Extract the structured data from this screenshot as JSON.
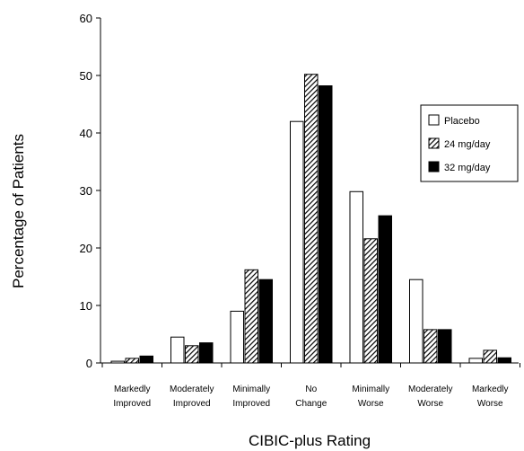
{
  "chart_data": {
    "type": "bar",
    "title": "",
    "xlabel": "CIBIC-plus Rating",
    "ylabel": "Percentage  of Patients",
    "ylim": [
      0,
      60
    ],
    "yticks": [
      0,
      10,
      20,
      30,
      40,
      50,
      60
    ],
    "grid": false,
    "legend_position": "right",
    "categories": [
      [
        "Markedly",
        "Improved"
      ],
      [
        "Moderately",
        "Improved"
      ],
      [
        "Minimally",
        "Improved"
      ],
      [
        "No",
        "Change"
      ],
      [
        "Minimally",
        "Worse"
      ],
      [
        "Moderately",
        "Worse"
      ],
      [
        "Markedly",
        "Worse"
      ]
    ],
    "series": [
      {
        "name": "Placebo",
        "fill": "white",
        "values": [
          0.3,
          4.5,
          9.0,
          42.0,
          29.8,
          14.5,
          0.8
        ]
      },
      {
        "name": "24 mg/day",
        "fill": "hatched",
        "values": [
          0.8,
          3.0,
          16.2,
          50.2,
          21.6,
          5.8,
          2.2
        ]
      },
      {
        "name": "32 mg/day",
        "fill": "solid",
        "values": [
          1.2,
          3.5,
          14.5,
          48.2,
          25.6,
          5.8,
          0.9
        ]
      }
    ]
  }
}
